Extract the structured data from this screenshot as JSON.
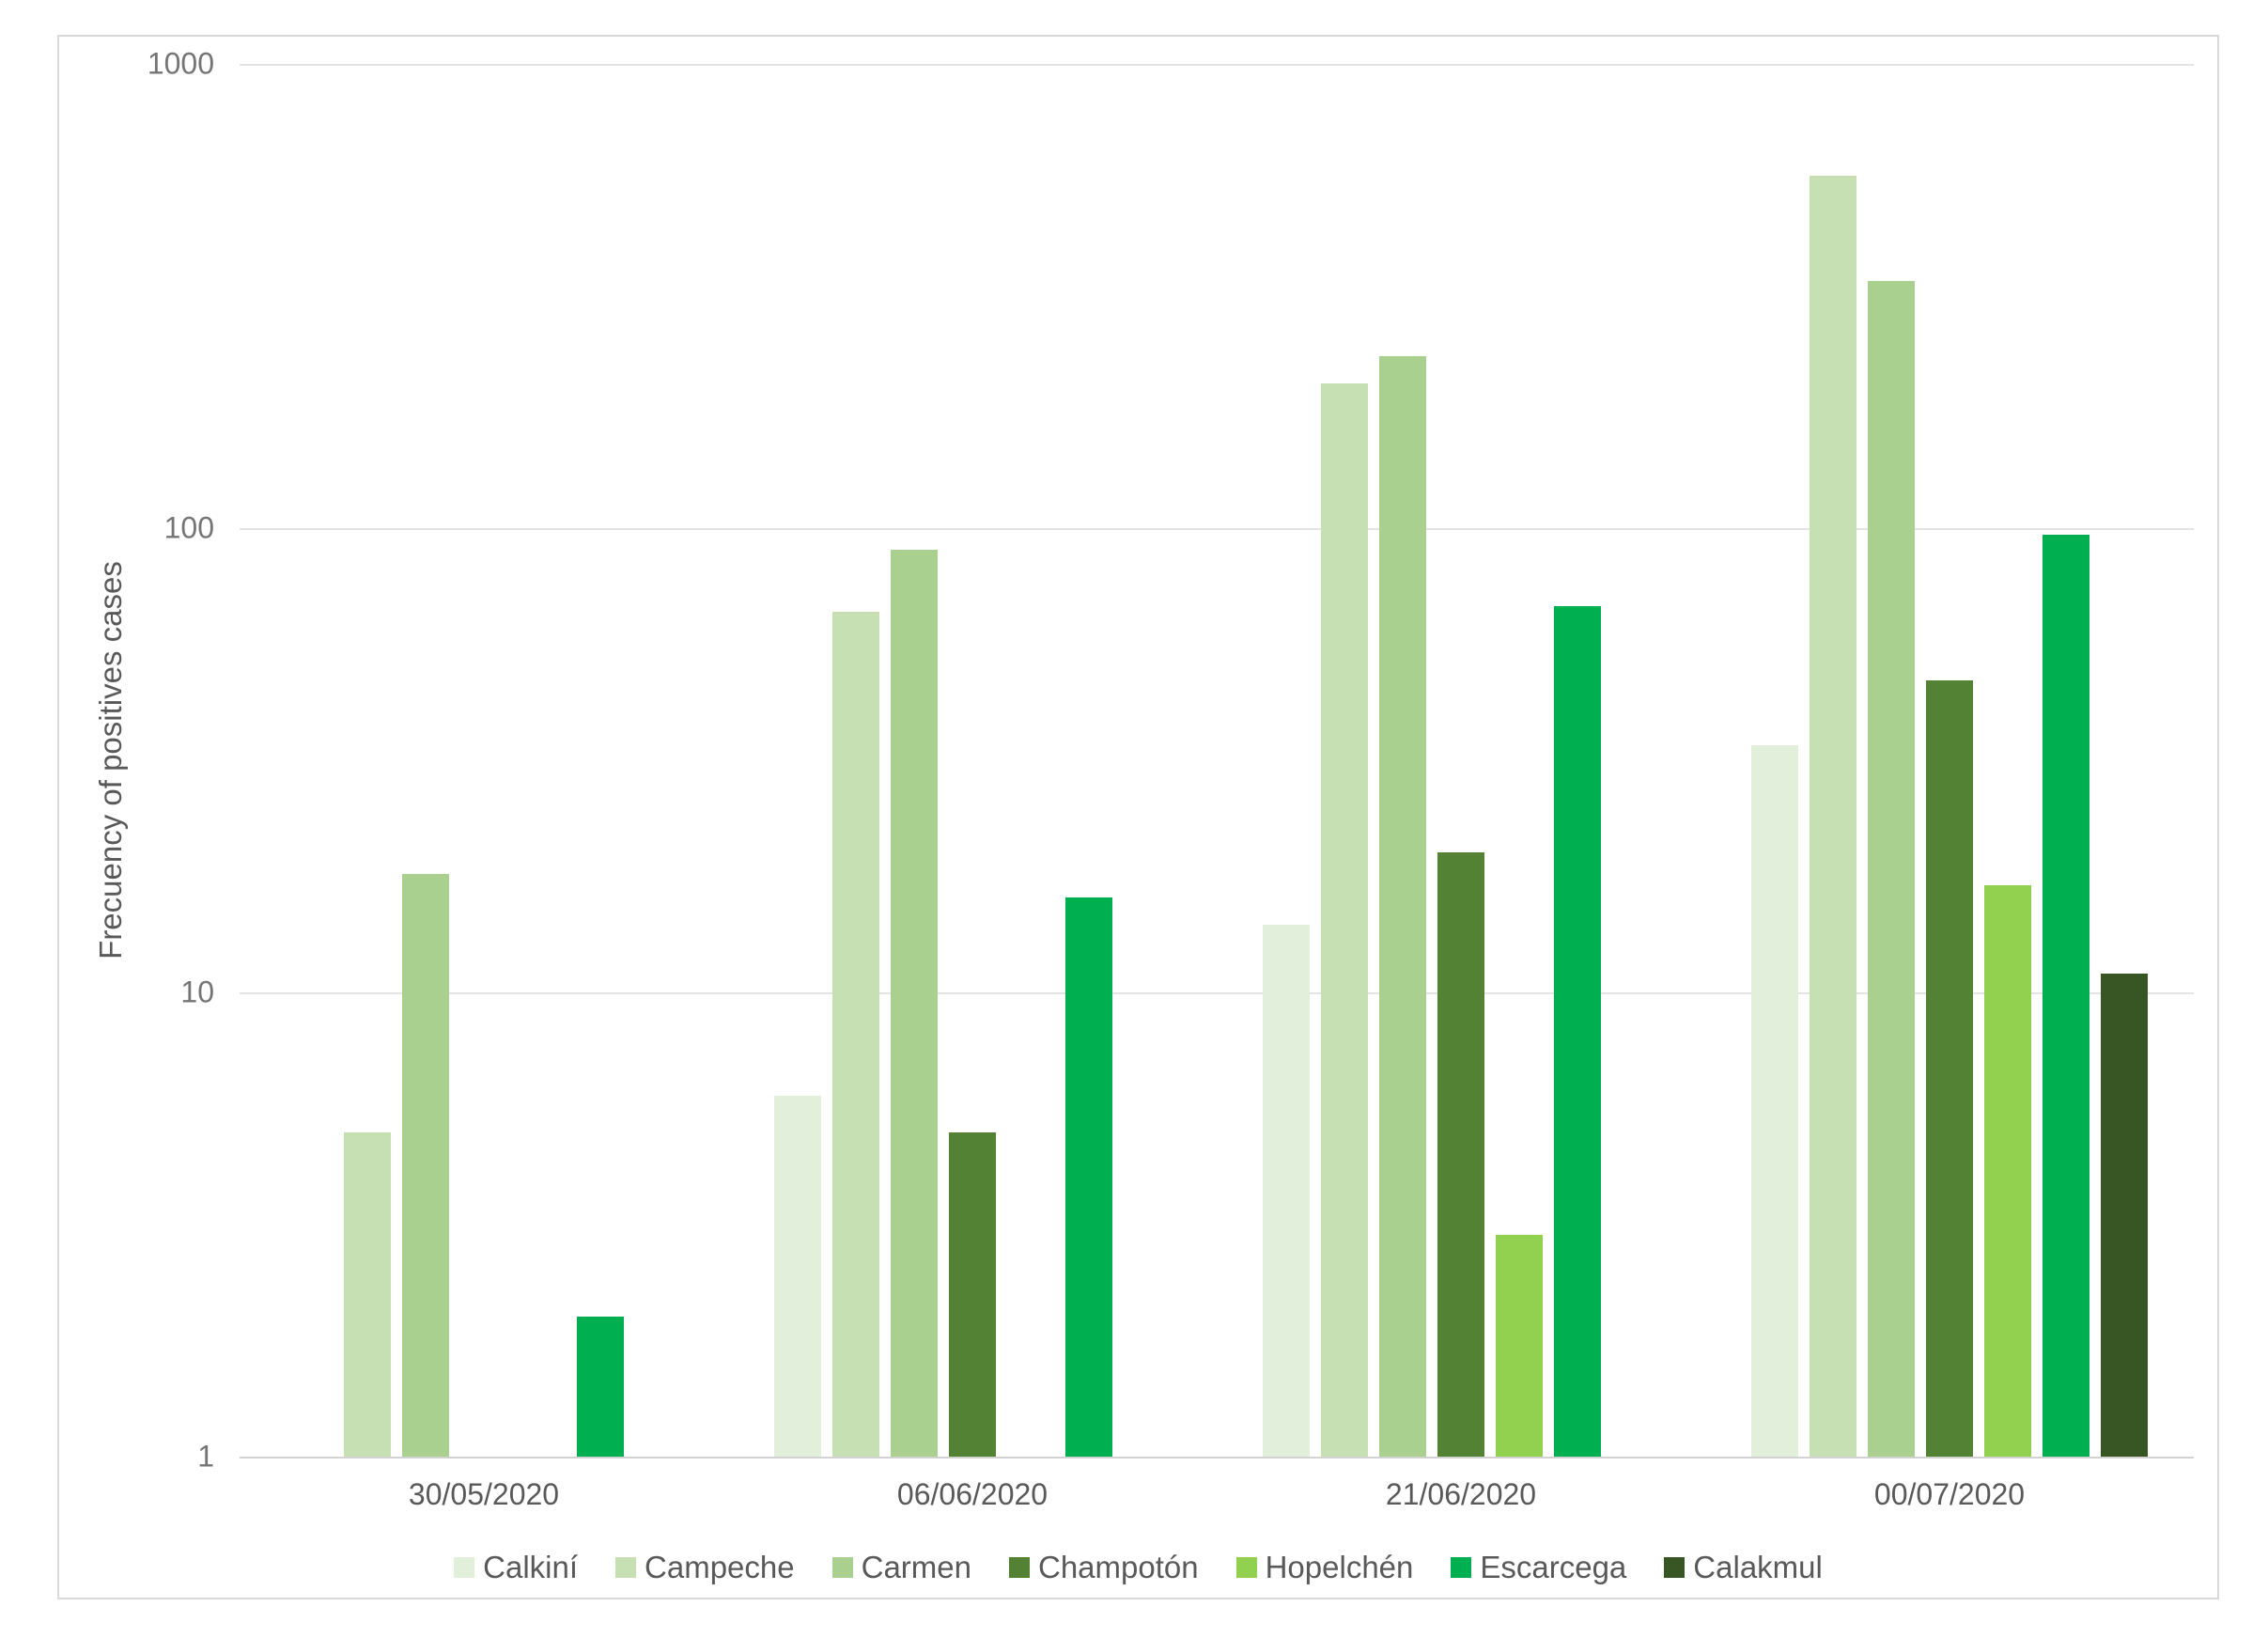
{
  "chart_data": {
    "type": "bar",
    "title": "",
    "xlabel": "",
    "ylabel": "Frecuency of positives cases",
    "y_scale": "log",
    "ylim": [
      1,
      1000
    ],
    "y_ticks": [
      1,
      10,
      100,
      1000
    ],
    "grid": "horizontal",
    "legend_position": "bottom",
    "categories": [
      "30/05/2020",
      "06/06/2020",
      "21/06/2020",
      "00/07/2020"
    ],
    "series": [
      {
        "name": "Calkiní",
        "color": "#e2efda",
        "values": [
          null,
          6,
          14,
          34
        ]
      },
      {
        "name": "Campeche",
        "color": "#c6e0b4",
        "values": [
          5,
          66,
          205,
          575
        ]
      },
      {
        "name": "Carmen",
        "color": "#a9d08e",
        "values": [
          18,
          90,
          235,
          340
        ]
      },
      {
        "name": "Champotón",
        "color": "#548235",
        "values": [
          null,
          5,
          20,
          47
        ]
      },
      {
        "name": "Hopelchén",
        "color": "#92d050",
        "values": [
          null,
          null,
          3,
          17
        ]
      },
      {
        "name": "Escarcega",
        "color": "#00b050",
        "values": [
          2,
          16,
          68,
          97
        ]
      },
      {
        "name": "Calakmul",
        "color": "#375623",
        "values": [
          null,
          null,
          null,
          11
        ]
      }
    ]
  },
  "colors": {
    "background": "#ffffff",
    "frame_border": "#d9d9d9",
    "gridline": "#e4e4e4",
    "axis_line": "#d2d2d2",
    "y_tick_text": "#757575",
    "x_label_text": "#595959",
    "legend_text": "#595959"
  }
}
